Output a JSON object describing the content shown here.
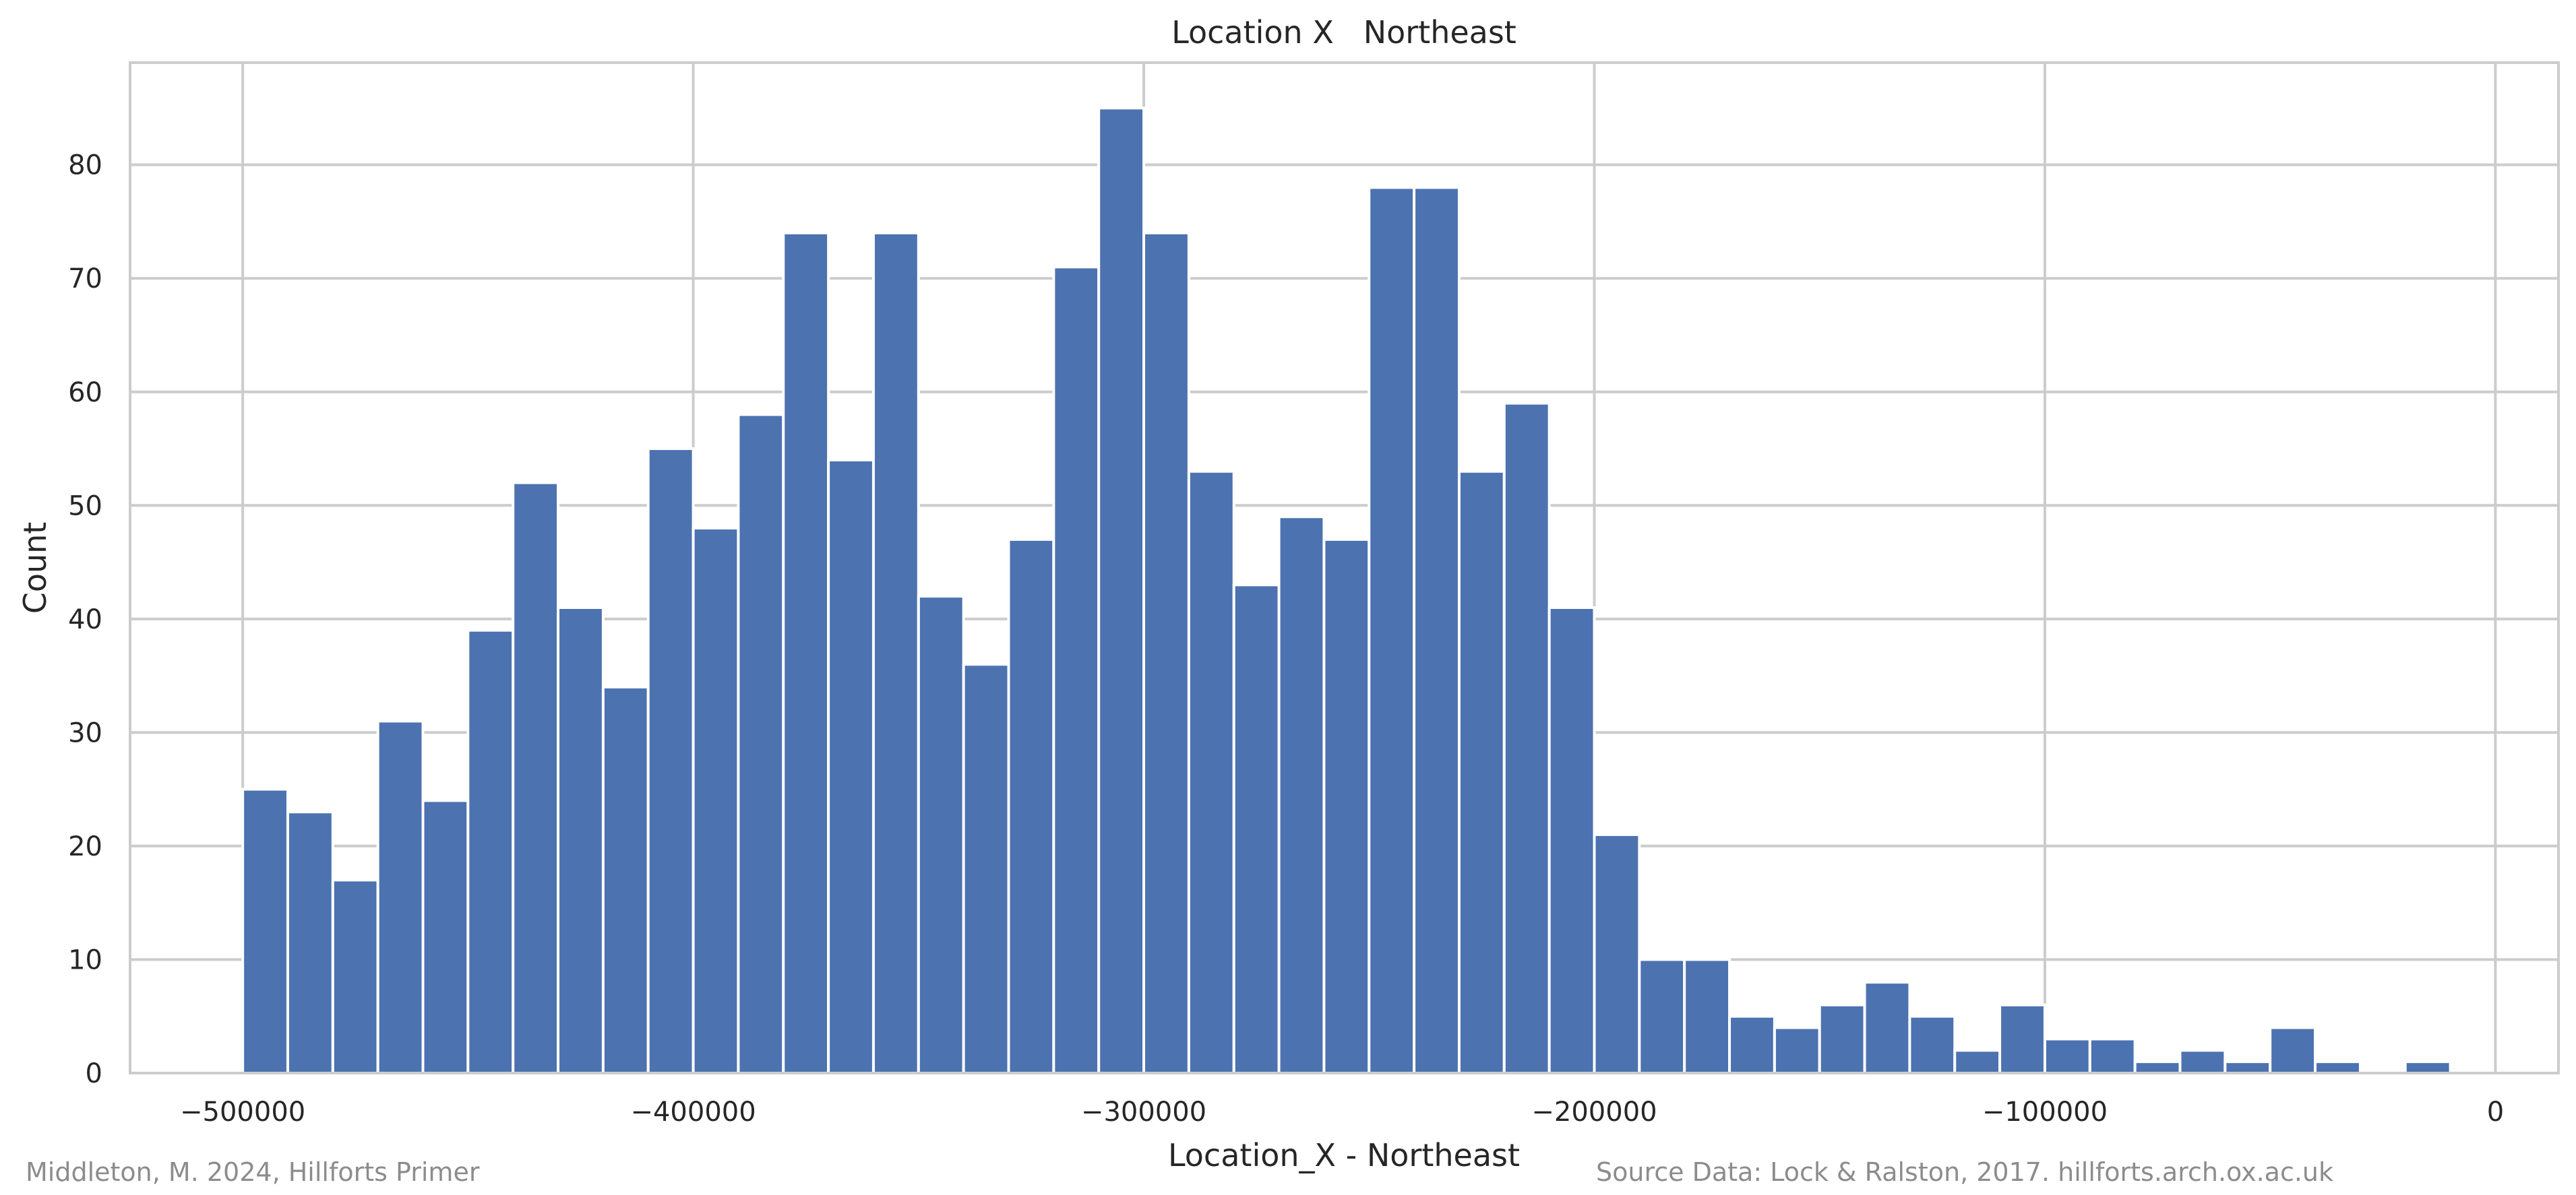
{
  "chart_data": {
    "type": "bar",
    "title": "Location X   Northeast",
    "xlabel": "Location_X - Northeast",
    "ylabel": "Count",
    "xlim": [
      -525000,
      14000
    ],
    "ylim": [
      0,
      89
    ],
    "grid": true,
    "bin_start": -500000,
    "bin_width": 10000,
    "values": [
      25,
      23,
      17,
      31,
      24,
      39,
      52,
      41,
      34,
      55,
      48,
      58,
      74,
      54,
      74,
      42,
      36,
      47,
      71,
      85,
      74,
      53,
      43,
      49,
      47,
      78,
      78,
      53,
      59,
      41,
      21,
      10,
      10,
      5,
      4,
      6,
      8,
      5,
      2,
      6,
      3,
      3,
      1,
      2,
      1,
      4,
      1,
      0,
      1
    ],
    "xticks": [
      -500000,
      -400000,
      -300000,
      -200000,
      -100000,
      0
    ],
    "xtick_labels": [
      "−500000",
      "−400000",
      "−300000",
      "−200000",
      "−100000",
      "0"
    ],
    "yticks": [
      0,
      10,
      20,
      30,
      40,
      50,
      60,
      70,
      80
    ],
    "ytick_labels": [
      "0",
      "10",
      "20",
      "30",
      "40",
      "50",
      "60",
      "70",
      "80"
    ],
    "bar_color": "#4c72b0",
    "grid_color": "#cccccc"
  },
  "footer": {
    "left": "Middleton, M. 2024, Hillforts Primer",
    "right": "Source Data: Lock & Ralston, 2017. hillforts.arch.ox.ac.uk"
  }
}
